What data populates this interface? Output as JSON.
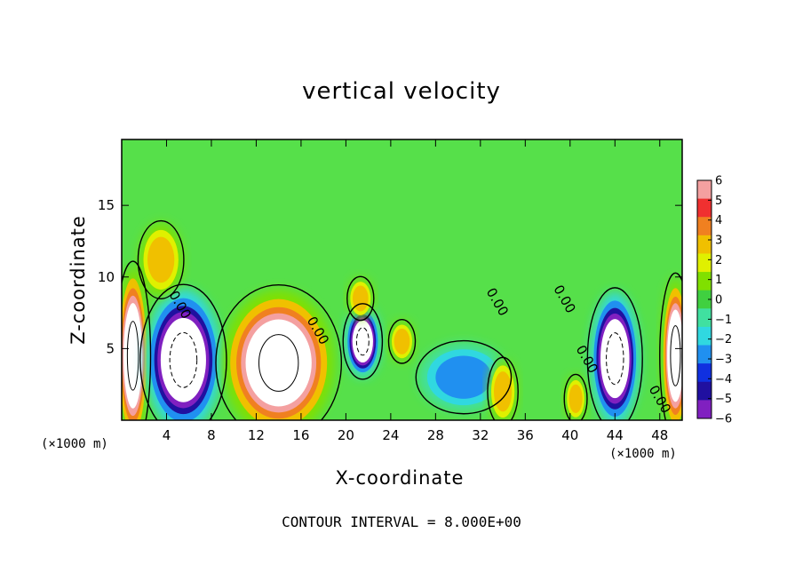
{
  "chart_data": {
    "type": "heatmap",
    "title": "vertical velocity",
    "xlabel": "X-coordinate",
    "ylabel": "Z-coordinate",
    "x_unit_label": "(×1000 m)",
    "x_unit_label_right": "(×1000 m)",
    "footer": "CONTOUR INTERVAL = 8.000E+00",
    "xlim": [
      0,
      50
    ],
    "ylim": [
      0,
      19.6
    ],
    "xticks": [
      4,
      8,
      12,
      16,
      20,
      24,
      28,
      32,
      36,
      40,
      44,
      48
    ],
    "yticks": [
      5,
      10,
      15
    ],
    "contour_label": "0.00",
    "colorbar": {
      "min": -6,
      "max": 6,
      "tick_labels": [
        "6",
        "5",
        "4",
        "3",
        "2",
        "1",
        "0",
        "−1",
        "−2",
        "−3",
        "−4",
        "−5",
        "−6"
      ],
      "colors": [
        "#f4a0a0",
        "#f03030",
        "#f08020",
        "#f0c000",
        "#e0f000",
        "#80e000",
        "#40d040",
        "#40e0a0",
        "#30d8e0",
        "#2090f0",
        "#1030e0",
        "#2010a0",
        "#8020c0"
      ]
    },
    "background_color": "#56e04a",
    "features": [
      {
        "x": 1.0,
        "z": 4.5,
        "w": 0.9,
        "h": 4.0,
        "value": 10,
        "label": "updraft"
      },
      {
        "x": 5.5,
        "z": 4.2,
        "w": 2.2,
        "h": 3.2,
        "value": -10,
        "label": "downdraft"
      },
      {
        "x": 14.0,
        "z": 4.0,
        "w": 3.2,
        "h": 3.3,
        "value": 10,
        "label": "updraft"
      },
      {
        "x": 21.5,
        "z": 5.5,
        "w": 1.0,
        "h": 1.6,
        "value": -10,
        "label": "downdraft"
      },
      {
        "x": 30.5,
        "z": 3.0,
        "w": 2.5,
        "h": 1.5,
        "value": -3,
        "label": "downdraft"
      },
      {
        "x": 34.0,
        "z": 2.0,
        "w": 0.8,
        "h": 1.4,
        "value": 3.5,
        "label": "updraft"
      },
      {
        "x": 44.0,
        "z": 4.3,
        "w": 1.4,
        "h": 3.0,
        "value": -10,
        "label": "downdraft"
      },
      {
        "x": 49.4,
        "z": 4.5,
        "w": 0.8,
        "h": 3.5,
        "value": 10,
        "label": "updraft"
      },
      {
        "x": 3.5,
        "z": 11.2,
        "w": 1.2,
        "h": 1.6,
        "value": 3,
        "label": "updraft"
      },
      {
        "x": 21.3,
        "z": 8.5,
        "w": 0.7,
        "h": 0.9,
        "value": 3.5,
        "label": "updraft"
      },
      {
        "x": 25.0,
        "z": 5.5,
        "w": 0.7,
        "h": 0.9,
        "value": 3,
        "label": "updraft"
      },
      {
        "x": 40.5,
        "z": 1.5,
        "w": 0.6,
        "h": 1.0,
        "value": 3,
        "label": "updraft"
      }
    ]
  }
}
